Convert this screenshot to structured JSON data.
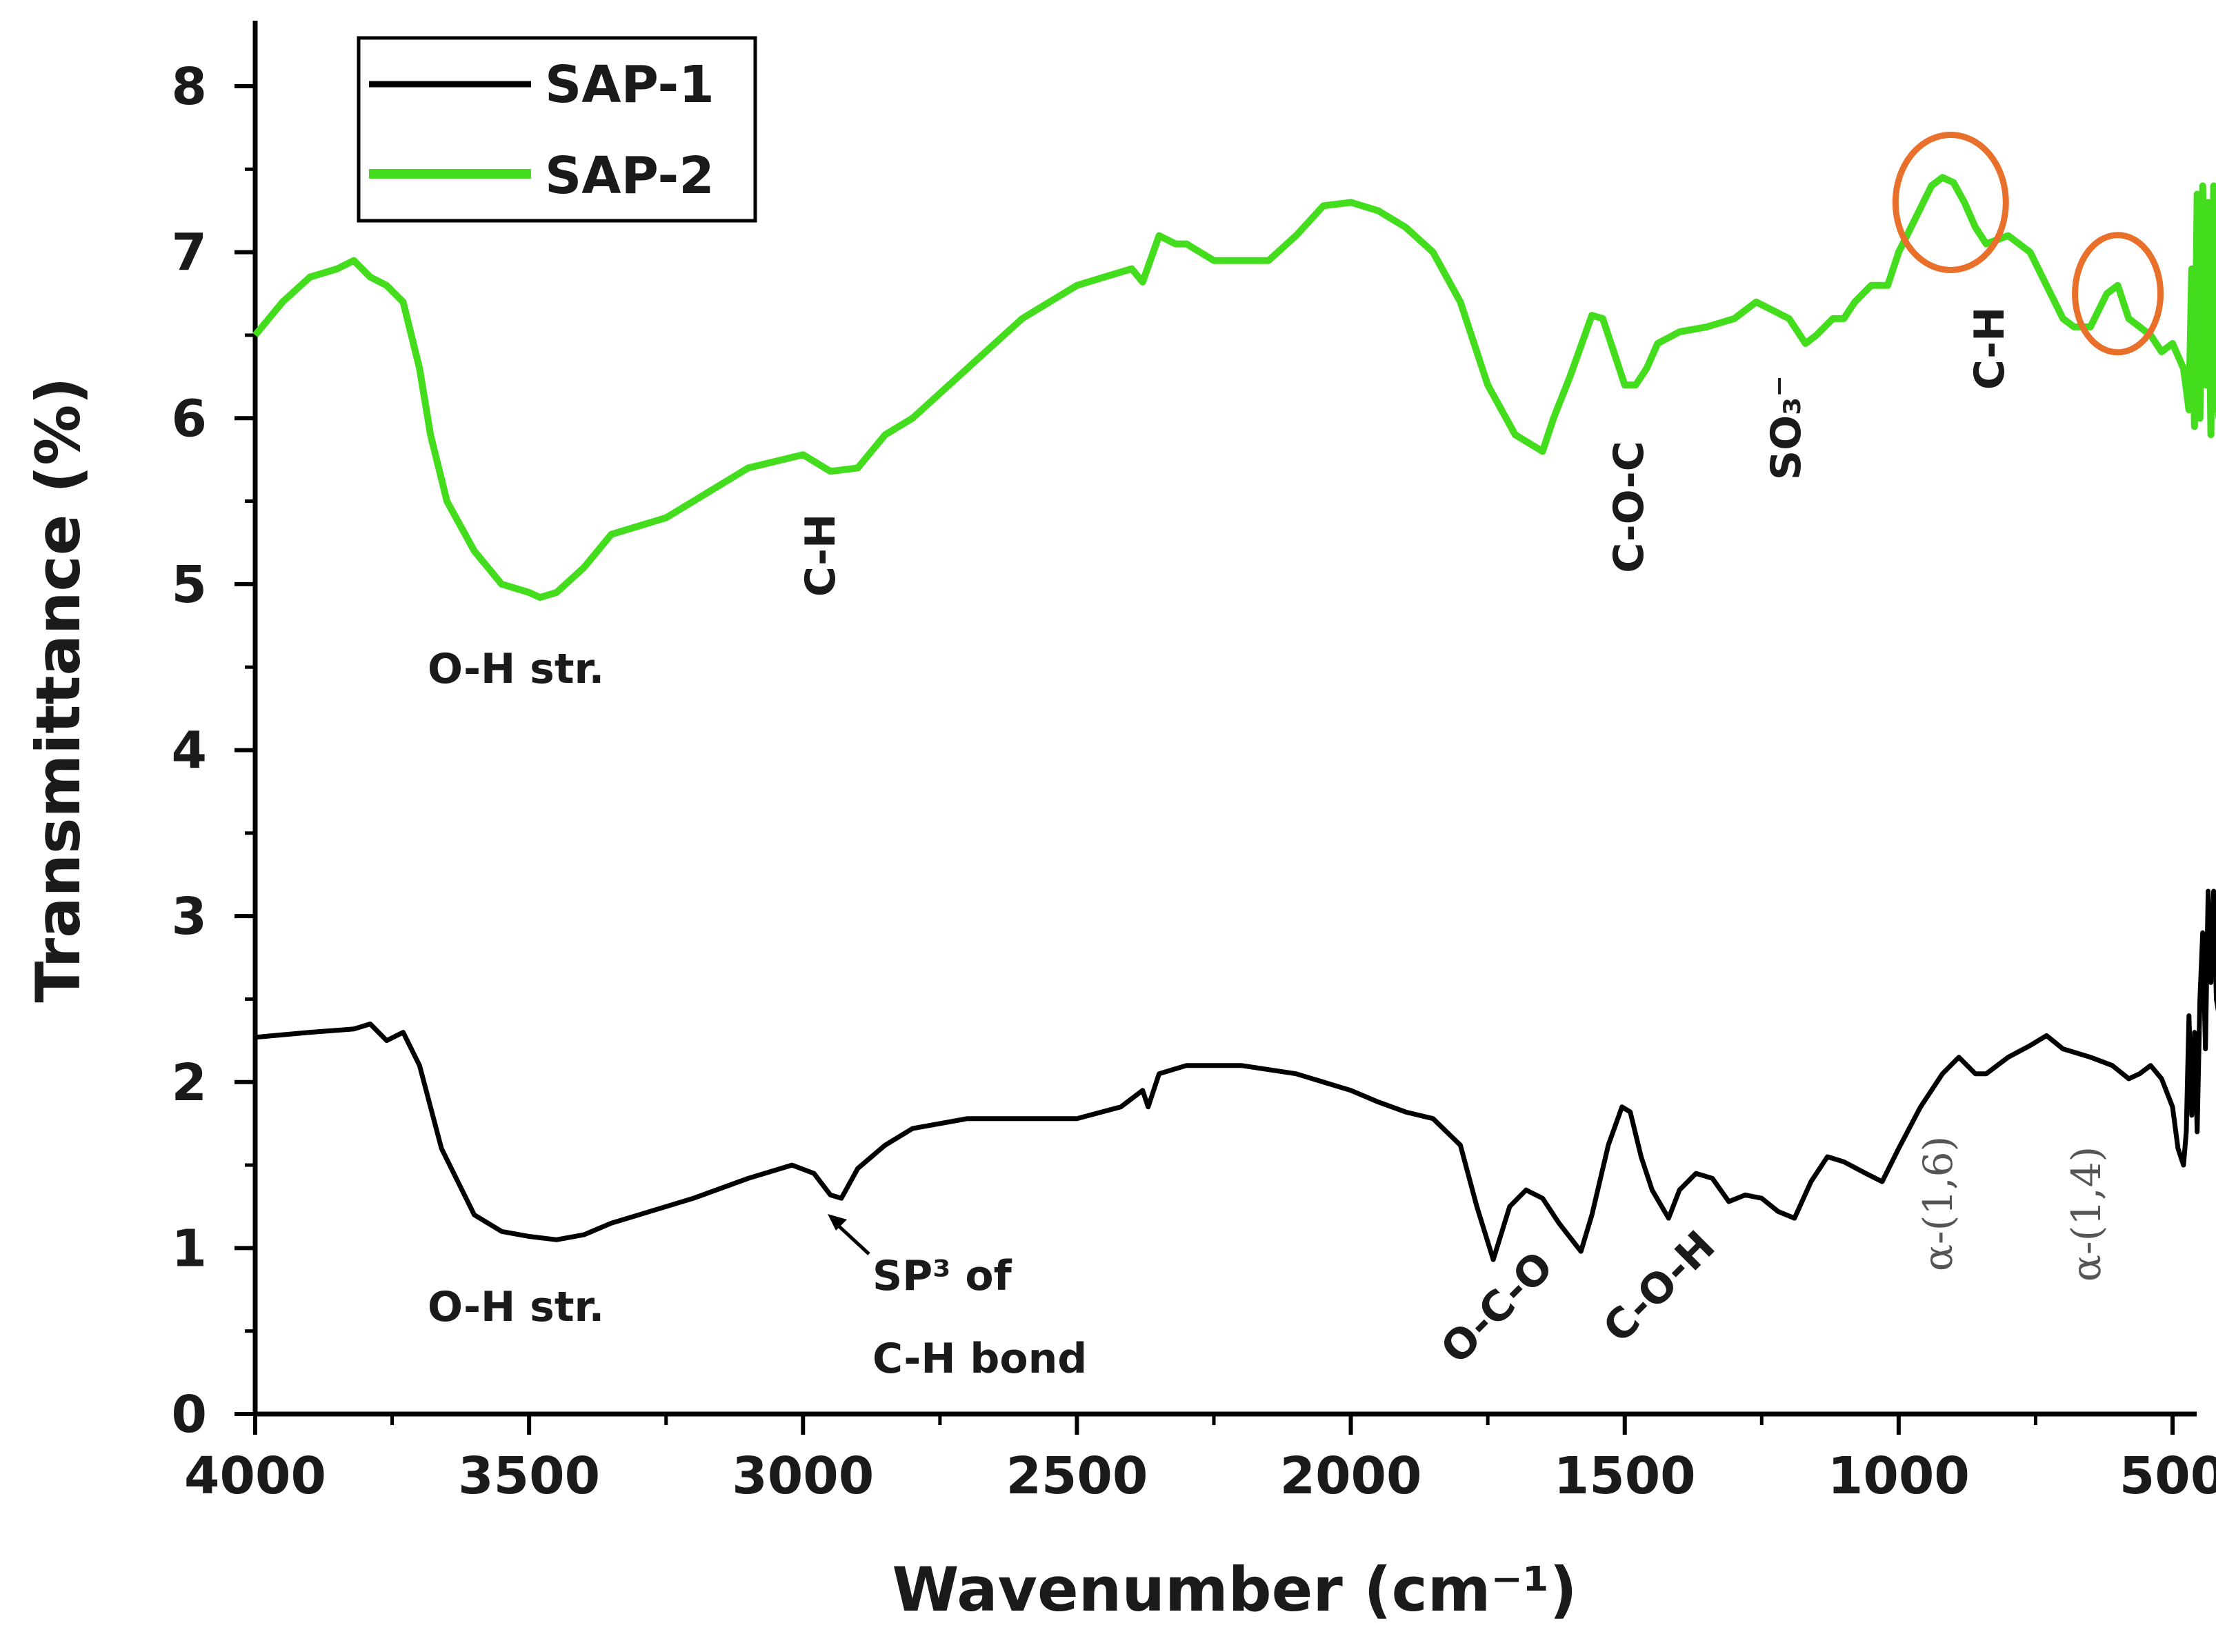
{
  "chart_data": {
    "type": "line",
    "xlabel": "Wavenumber (cm⁻¹)",
    "ylabel": "Transmittance (%)",
    "xlim": [
      4000,
      400
    ],
    "x_reversed": true,
    "ylim": [
      0,
      8.2
    ],
    "x_ticks": [
      4000,
      3500,
      3000,
      2500,
      2000,
      1500,
      1000,
      500
    ],
    "y_ticks": [
      0,
      1,
      2,
      3,
      4,
      5,
      6,
      7,
      8
    ],
    "grid": false,
    "legend_position": "top-left",
    "series": [
      {
        "name": "SAP-1",
        "color": "#000000",
        "x": [
          4000,
          3900,
          3820,
          3790,
          3760,
          3730,
          3700,
          3660,
          3600,
          3550,
          3500,
          3450,
          3400,
          3350,
          3300,
          3200,
          3100,
          3020,
          2980,
          2950,
          2930,
          2900,
          2850,
          2800,
          2700,
          2600,
          2500,
          2420,
          2380,
          2370,
          2350,
          2300,
          2200,
          2100,
          2000,
          1950,
          1900,
          1850,
          1800,
          1770,
          1740,
          1710,
          1680,
          1650,
          1620,
          1580,
          1560,
          1530,
          1505,
          1490,
          1470,
          1450,
          1420,
          1400,
          1370,
          1340,
          1310,
          1280,
          1250,
          1220,
          1190,
          1160,
          1130,
          1100,
          1060,
          1030,
          1000,
          960,
          920,
          890,
          860,
          840,
          800,
          760,
          730,
          700,
          650,
          610,
          580,
          560,
          540,
          520,
          500,
          490,
          480,
          475,
          470,
          465,
          460,
          455,
          450,
          445,
          440,
          435,
          430,
          425,
          420,
          415
        ],
        "y": [
          2.27,
          2.3,
          2.32,
          2.35,
          2.25,
          2.3,
          2.1,
          1.6,
          1.2,
          1.1,
          1.07,
          1.05,
          1.08,
          1.15,
          1.2,
          1.3,
          1.42,
          1.5,
          1.45,
          1.32,
          1.3,
          1.48,
          1.62,
          1.72,
          1.78,
          1.78,
          1.78,
          1.85,
          1.95,
          1.85,
          2.05,
          2.1,
          2.1,
          2.05,
          1.95,
          1.88,
          1.82,
          1.78,
          1.62,
          1.25,
          0.93,
          1.25,
          1.35,
          1.3,
          1.15,
          0.98,
          1.2,
          1.62,
          1.85,
          1.82,
          1.55,
          1.35,
          1.18,
          1.35,
          1.45,
          1.42,
          1.28,
          1.32,
          1.3,
          1.22,
          1.18,
          1.4,
          1.55,
          1.52,
          1.45,
          1.4,
          1.6,
          1.85,
          2.05,
          2.15,
          2.05,
          2.05,
          2.15,
          2.22,
          2.28,
          2.2,
          2.15,
          2.1,
          2.02,
          2.05,
          2.1,
          2.02,
          1.85,
          1.6,
          1.5,
          1.7,
          2.4,
          1.8,
          2.3,
          1.7,
          2.5,
          2.9,
          2.2,
          3.15,
          2.6,
          3.15,
          2.5,
          2.4
        ]
      },
      {
        "name": "SAP-2",
        "color": "#44dd1e",
        "x": [
          4000,
          3950,
          3900,
          3850,
          3820,
          3790,
          3760,
          3730,
          3700,
          3680,
          3650,
          3600,
          3550,
          3500,
          3480,
          3450,
          3400,
          3350,
          3300,
          3250,
          3200,
          3100,
          3000,
          2950,
          2900,
          2850,
          2800,
          2700,
          2600,
          2500,
          2450,
          2400,
          2380,
          2350,
          2320,
          2300,
          2250,
          2200,
          2150,
          2100,
          2050,
          2000,
          1950,
          1900,
          1850,
          1800,
          1750,
          1700,
          1650,
          1630,
          1600,
          1560,
          1540,
          1520,
          1500,
          1480,
          1460,
          1440,
          1400,
          1350,
          1300,
          1260,
          1230,
          1200,
          1170,
          1150,
          1120,
          1100,
          1080,
          1050,
          1020,
          1000,
          970,
          940,
          920,
          900,
          880,
          860,
          840,
          800,
          780,
          760,
          730,
          700,
          680,
          650,
          620,
          600,
          590,
          580,
          560,
          540,
          520,
          500,
          480,
          470,
          465,
          460,
          455,
          450,
          445,
          440,
          435,
          430,
          425,
          420,
          415
        ],
        "y": [
          6.5,
          6.7,
          6.85,
          6.9,
          6.95,
          6.85,
          6.8,
          6.7,
          6.3,
          5.9,
          5.5,
          5.2,
          5.0,
          4.95,
          4.92,
          4.95,
          5.1,
          5.3,
          5.35,
          5.4,
          5.5,
          5.7,
          5.78,
          5.68,
          5.7,
          5.9,
          6.0,
          6.3,
          6.6,
          6.8,
          6.85,
          6.9,
          6.82,
          7.1,
          7.05,
          7.05,
          6.95,
          6.95,
          6.95,
          7.1,
          7.28,
          7.3,
          7.25,
          7.15,
          7.0,
          6.7,
          6.2,
          5.9,
          5.8,
          6.0,
          6.25,
          6.62,
          6.6,
          6.4,
          6.2,
          6.2,
          6.3,
          6.45,
          6.52,
          6.55,
          6.6,
          6.7,
          6.65,
          6.6,
          6.45,
          6.5,
          6.6,
          6.6,
          6.7,
          6.8,
          6.8,
          7.0,
          7.2,
          7.4,
          7.45,
          7.42,
          7.3,
          7.15,
          7.05,
          7.1,
          7.05,
          7.0,
          6.8,
          6.6,
          6.55,
          6.55,
          6.75,
          6.8,
          6.7,
          6.6,
          6.55,
          6.5,
          6.4,
          6.45,
          6.3,
          6.05,
          6.9,
          5.95,
          7.35,
          6.0,
          7.4,
          6.2,
          7.3,
          5.9,
          7.4,
          6.1,
          6.0
        ]
      }
    ],
    "annotations": {
      "sap2_oh": "O-H str.",
      "sap2_ch1": "C-H",
      "sap2_coc": "C-O-C",
      "sap2_so3": "SO₃⁻",
      "sap2_ch2": "C-H",
      "sap1_oh": "O-H str.",
      "sap1_sp3_line1": "SP³ of",
      "sap1_sp3_line2": "C-H bond",
      "sap1_oco": "O-C-O",
      "sap1_coh": "C-O-H",
      "sap1_a16": "α-(1,6)",
      "sap1_a14": "α-(1,4)"
    },
    "highlight_color": "#e8702a"
  }
}
